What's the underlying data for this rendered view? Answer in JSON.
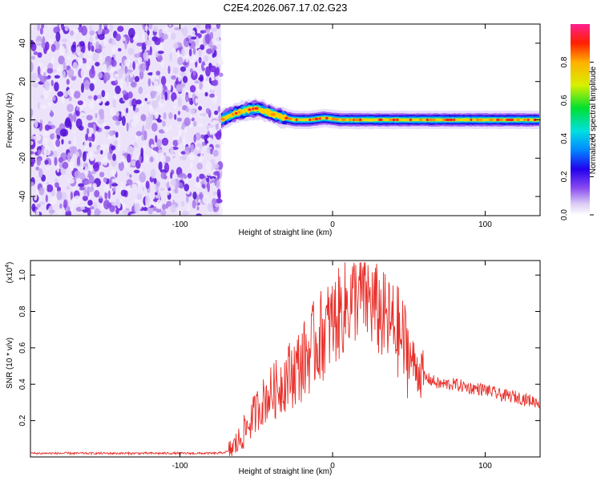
{
  "chart_data": [
    {
      "type": "heatmap",
      "title": "C2E4.2026.067.17.02.G23",
      "xlabel": "Height of straight line (km)",
      "ylabel": "Frequency (Hz)",
      "xlim": [
        -198,
        136
      ],
      "ylim": [
        -50,
        50
      ],
      "xticks": [
        -100,
        0,
        100
      ],
      "xtick_labels": [
        "-100",
        "0",
        "100"
      ],
      "yticks": [
        -40,
        -20,
        0,
        20,
        40
      ],
      "ytick_labels": [
        "-40",
        "-20",
        "0",
        "20",
        "40"
      ],
      "noise_region_x": [
        -198,
        -73
      ],
      "signal_band": [
        {
          "x": -73,
          "y": 0
        },
        {
          "x": -65,
          "y": 3
        },
        {
          "x": -57,
          "y": 5
        },
        {
          "x": -50,
          "y": 6
        },
        {
          "x": -43,
          "y": 4
        },
        {
          "x": -36,
          "y": 2
        },
        {
          "x": -25,
          "y": 0
        },
        {
          "x": -15,
          "y": 0
        },
        {
          "x": -5,
          "y": 1
        },
        {
          "x": 5,
          "y": 0
        },
        {
          "x": 50,
          "y": 0
        },
        {
          "x": 136,
          "y": 0
        }
      ],
      "colorbar": {
        "label": "Normalized spectral amplitude",
        "range": [
          0,
          1
        ],
        "ticks": [
          0.0,
          0.2,
          0.4,
          0.6,
          0.8
        ],
        "tick_labels": [
          "0.0",
          "0.2",
          "0.4",
          "0.6",
          "0.8"
        ]
      },
      "grid": false
    },
    {
      "type": "line",
      "xlabel": "Height of straight line (km)",
      "ylabel": "SNR (10 * v/v)",
      "multiplier_base": "(x10",
      "multiplier_exp": "4",
      "multiplier_close": ")",
      "xlim": [
        -198,
        136
      ],
      "ylim": [
        0,
        1.08
      ],
      "xticks": [
        -100,
        0,
        100
      ],
      "xtick_labels": [
        "-100",
        "0",
        "100"
      ],
      "yticks": [
        0.2,
        0.4,
        0.6,
        0.8,
        1.0
      ],
      "ytick_labels": [
        "0.2",
        "0.4",
        "0.6",
        "0.8",
        "1.0"
      ],
      "series": [
        {
          "color": "#e8302a",
          "points": [
            [
              -198,
              0.02
            ],
            [
              -150,
              0.02
            ],
            [
              -100,
              0.02
            ],
            [
              -75,
              0.02
            ],
            [
              -68,
              0.03
            ],
            [
              -62,
              0.08
            ],
            [
              -55,
              0.18
            ],
            [
              -48,
              0.28
            ],
            [
              -42,
              0.34
            ],
            [
              -36,
              0.38
            ],
            [
              -30,
              0.44
            ],
            [
              -24,
              0.48
            ],
            [
              -18,
              0.54
            ],
            [
              -12,
              0.62
            ],
            [
              -6,
              0.68
            ],
            [
              0,
              0.74
            ],
            [
              6,
              0.8
            ],
            [
              12,
              0.86
            ],
            [
              18,
              0.9
            ],
            [
              24,
              0.86
            ],
            [
              30,
              0.8
            ],
            [
              36,
              0.74
            ],
            [
              42,
              0.7
            ],
            [
              48,
              0.6
            ],
            [
              54,
              0.5
            ],
            [
              60,
              0.44
            ],
            [
              70,
              0.4
            ],
            [
              80,
              0.4
            ],
            [
              90,
              0.38
            ],
            [
              100,
              0.37
            ],
            [
              110,
              0.34
            ],
            [
              120,
              0.33
            ],
            [
              130,
              0.31
            ],
            [
              136,
              0.3
            ]
          ]
        }
      ]
    }
  ]
}
